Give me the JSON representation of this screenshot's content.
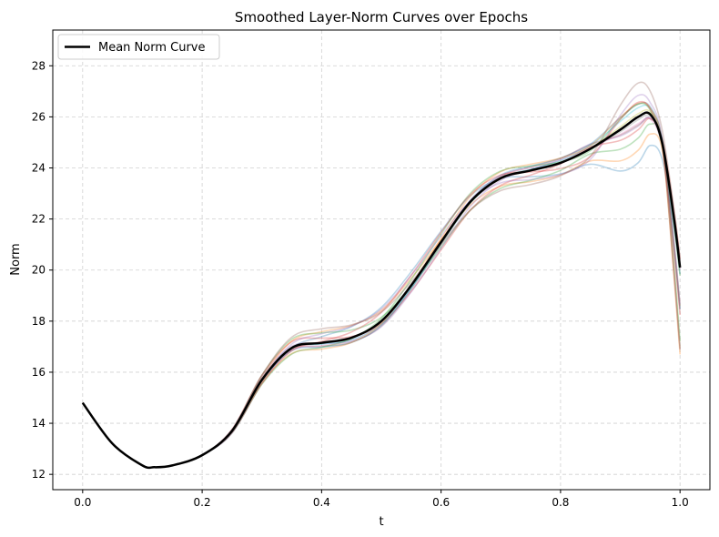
{
  "chart_data": {
    "type": "line",
    "title": "Smoothed Layer-Norm Curves over Epochs",
    "xlabel": "t",
    "ylabel": "Norm",
    "xlim": [
      -0.05,
      1.05
    ],
    "ylim": [
      11.4,
      29.4
    ],
    "xticks": [
      0.0,
      0.2,
      0.4,
      0.6,
      0.8,
      1.0
    ],
    "xtick_labels": [
      "0.0",
      "0.2",
      "0.4",
      "0.6",
      "0.8",
      "1.0"
    ],
    "yticks": [
      12,
      14,
      16,
      18,
      20,
      22,
      24,
      26,
      28
    ],
    "ytick_labels": [
      "12",
      "14",
      "16",
      "18",
      "20",
      "22",
      "24",
      "26",
      "28"
    ],
    "grid": true,
    "legend": {
      "placement": "top-left",
      "entries": [
        "Mean Norm Curve"
      ]
    },
    "mean_series": {
      "name": "Mean Norm Curve",
      "color": "#000000",
      "x": [
        0.0,
        0.05,
        0.1,
        0.12,
        0.15,
        0.2,
        0.25,
        0.3,
        0.35,
        0.4,
        0.45,
        0.5,
        0.55,
        0.6,
        0.65,
        0.7,
        0.75,
        0.8,
        0.85,
        0.9,
        0.93,
        0.95,
        0.97,
        0.99,
        1.0
      ],
      "y": [
        14.8,
        13.2,
        12.35,
        12.28,
        12.35,
        12.75,
        13.7,
        15.7,
        16.95,
        17.15,
        17.35,
        18.0,
        19.4,
        21.1,
        22.7,
        23.6,
        23.9,
        24.2,
        24.75,
        25.5,
        26.0,
        26.1,
        25.0,
        22.0,
        20.1
      ]
    },
    "series_colors": [
      "#1f77b4",
      "#ff7f0e",
      "#2ca02c",
      "#d62728",
      "#9467bd",
      "#8c564b",
      "#e377c2",
      "#7f7f7f",
      "#bcbd22",
      "#17becf"
    ]
  }
}
